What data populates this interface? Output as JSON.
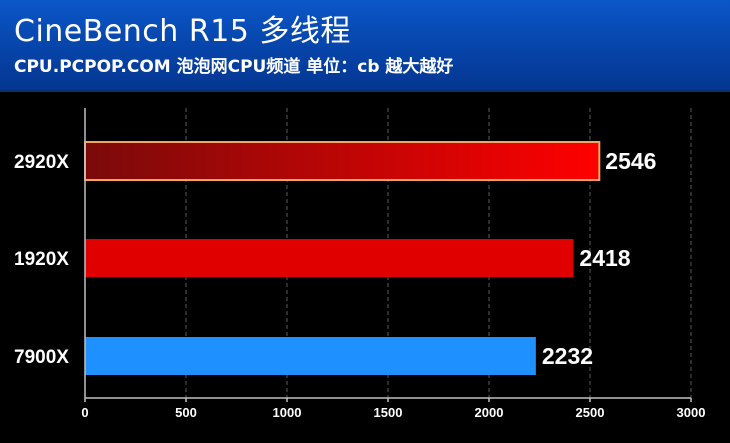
{
  "header": {
    "title": "CineBench R15 多线程",
    "subtitle": "CPU.PCPOP.COM 泡泡网CPU频道 单位：cb 越大越好"
  },
  "chart_data": {
    "type": "bar",
    "orientation": "horizontal",
    "title": "CineBench R15 多线程",
    "categories": [
      "2920X",
      "1920X",
      "7900X"
    ],
    "values": [
      2546,
      2418,
      2232
    ],
    "unit": "cb",
    "xlim": [
      0,
      3000
    ],
    "xticks": [
      0,
      500,
      1000,
      1500,
      2000,
      2500,
      3000
    ],
    "grid": "vertical",
    "colors": {
      "2920X": [
        "#7a0a0a",
        "#ff0000"
      ],
      "1920X": [
        "#e00000",
        "#e00000"
      ],
      "7900X": [
        "#1e90ff",
        "#1e90ff"
      ]
    },
    "highlight_border": "#f4a460"
  }
}
